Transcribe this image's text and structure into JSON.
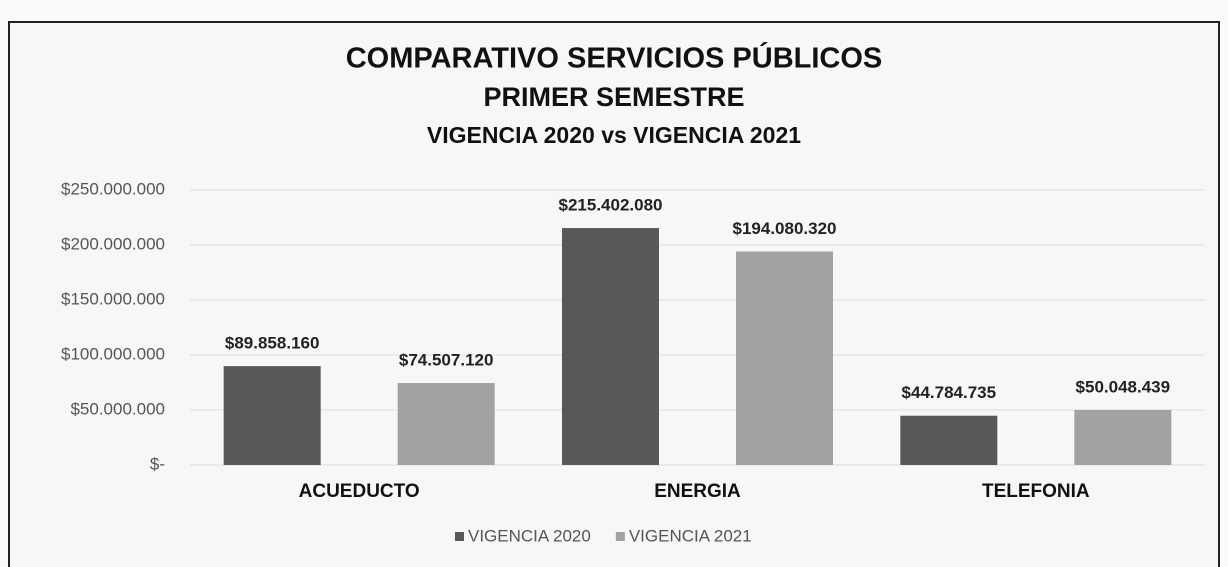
{
  "chart_data": {
    "type": "bar",
    "title": [
      "COMPARATIVO SERVICIOS PÚBLICOS",
      "PRIMER SEMESTRE"
    ],
    "subtitle": "VIGENCIA 2020 vs VIGENCIA 2021",
    "categories": [
      "ACUEDUCTO",
      "ENERGIA",
      "TELEFONIA"
    ],
    "series": [
      {
        "name": "VIGENCIA 2020",
        "color": "#585858",
        "values": [
          89858160,
          215402080,
          44784735
        ],
        "value_labels": [
          "$89.858.160",
          "$215.402.080",
          "$44.784.735"
        ]
      },
      {
        "name": "VIGENCIA 2021",
        "color": "#a2a2a2",
        "values": [
          74507120,
          194080320,
          50048439
        ],
        "value_labels": [
          "$74.507.120",
          "$194.080.320",
          "$50.048.439"
        ]
      }
    ],
    "ylim": [
      0,
      250000000
    ],
    "yticks": [
      {
        "value": 0,
        "label": "$-"
      },
      {
        "value": 50000000,
        "label": "$50.000.000"
      },
      {
        "value": 100000000,
        "label": "$100.000.000"
      },
      {
        "value": 150000000,
        "label": "$150.000.000"
      },
      {
        "value": 200000000,
        "label": "$200.000.000"
      },
      {
        "value": 250000000,
        "label": "$250.000.000"
      }
    ],
    "grid": true,
    "legend": "bottom"
  }
}
